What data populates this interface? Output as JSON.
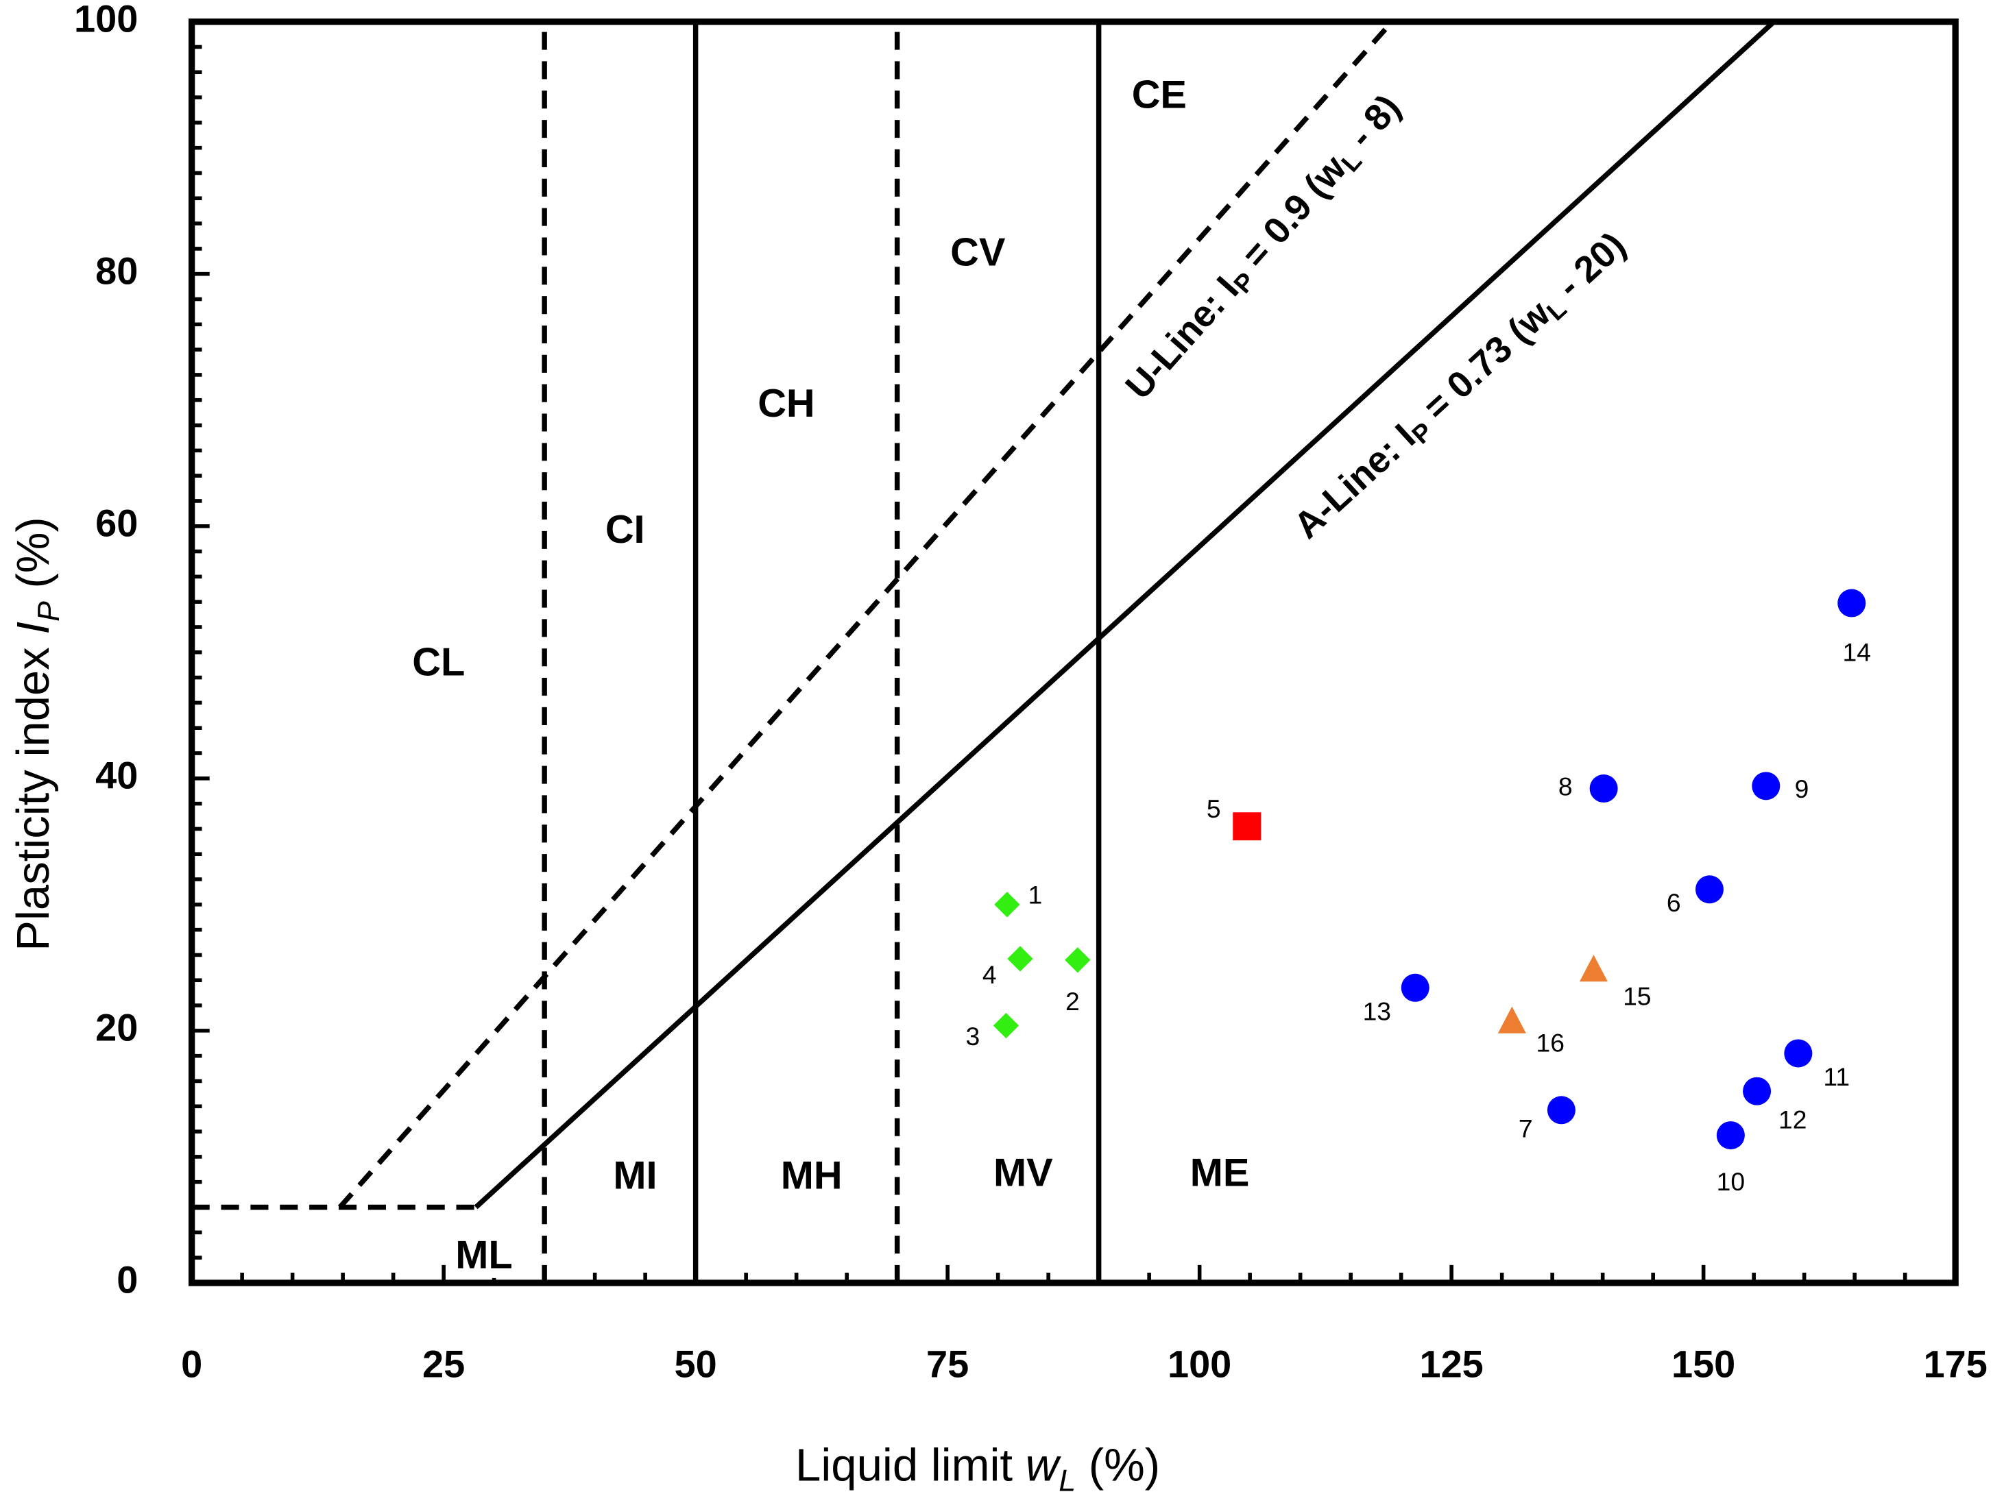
{
  "chart_data": {
    "type": "scatter",
    "x_label": [
      "Liquid limit ",
      "w",
      "L",
      " (%)"
    ],
    "y_label": [
      "Plasticity index ",
      "I",
      "P",
      " (%)"
    ],
    "xlim": [
      0,
      175
    ],
    "ylim": [
      0,
      100
    ],
    "xticks": [
      0,
      25,
      50,
      75,
      100,
      125,
      150,
      175
    ],
    "yticks": [
      0,
      20,
      40,
      60,
      80,
      100
    ],
    "xminorticks": [
      5,
      10,
      15,
      20,
      30,
      35,
      40,
      45,
      55,
      60,
      65,
      70,
      80,
      85,
      90,
      95,
      105,
      110,
      115,
      120,
      130,
      135,
      140,
      145,
      155,
      160,
      165,
      170
    ],
    "yminorticks": [
      2,
      4,
      6,
      8,
      10,
      12,
      14,
      16,
      18,
      22,
      24,
      26,
      28,
      30,
      32,
      34,
      36,
      38,
      42,
      44,
      46,
      48,
      50,
      52,
      54,
      56,
      58,
      62,
      64,
      66,
      68,
      70,
      72,
      74,
      76,
      78,
      82,
      84,
      86,
      88,
      90,
      92,
      94,
      96,
      98
    ],
    "boundaries": [
      {
        "x": 35,
        "dashed": true
      },
      {
        "x": 50,
        "dashed": false
      },
      {
        "x": 70,
        "dashed": true
      },
      {
        "x": 90,
        "dashed": false
      }
    ],
    "lines": [
      {
        "x": [
          0,
          28.2
        ],
        "y": [
          6,
          6
        ],
        "dashed": true
      },
      {
        "x": [
          14.7,
          119.1
        ],
        "y": [
          6,
          100
        ],
        "dashed": true
      },
      {
        "x": [
          28.2,
          157
        ],
        "y": [
          6,
          100
        ],
        "dashed": false
      }
    ],
    "line_labels": [
      [
        "U-Line: I",
        "P",
        " = 0.9 (w",
        "L",
        " - 8)"
      ],
      [
        "A-Line: I",
        "P",
        " = 0.73 (w",
        "L",
        " - 20)"
      ]
    ],
    "zones": [
      "CL",
      "CI",
      "CH",
      "CV",
      "CE",
      "MI",
      "MH",
      "MV",
      "ME",
      "ML"
    ],
    "series": [
      {
        "color": "#33ee11",
        "marker": "diamond",
        "x": [
          80.9,
          87.9,
          80.8,
          82.2
        ],
        "values": [
          30.0,
          25.6,
          20.4,
          25.7
        ],
        "labels": [
          "1",
          "2",
          "3",
          "4"
        ]
      },
      {
        "color": "#ff0000",
        "marker": "square",
        "x": [
          104.7
        ],
        "values": [
          36.2
        ],
        "labels": [
          "5"
        ]
      },
      {
        "color": "#0000ff",
        "marker": "circle",
        "x": [
          150.6,
          135.9,
          140.1,
          156.2,
          152.7,
          159.4,
          155.3,
          121.4,
          164.7
        ],
        "values": [
          31.2,
          13.7,
          39.2,
          39.4,
          11.7,
          18.2,
          15.2,
          23.4,
          53.9
        ],
        "labels": [
          "6",
          "7",
          "8",
          "9",
          "10",
          "11",
          "12",
          "13",
          "14"
        ]
      },
      {
        "color": "#ed7d31",
        "marker": "triangle",
        "x": [
          139.1,
          131.0
        ],
        "values": [
          24.8,
          20.7
        ],
        "labels": [
          "15",
          "16"
        ]
      }
    ]
  }
}
